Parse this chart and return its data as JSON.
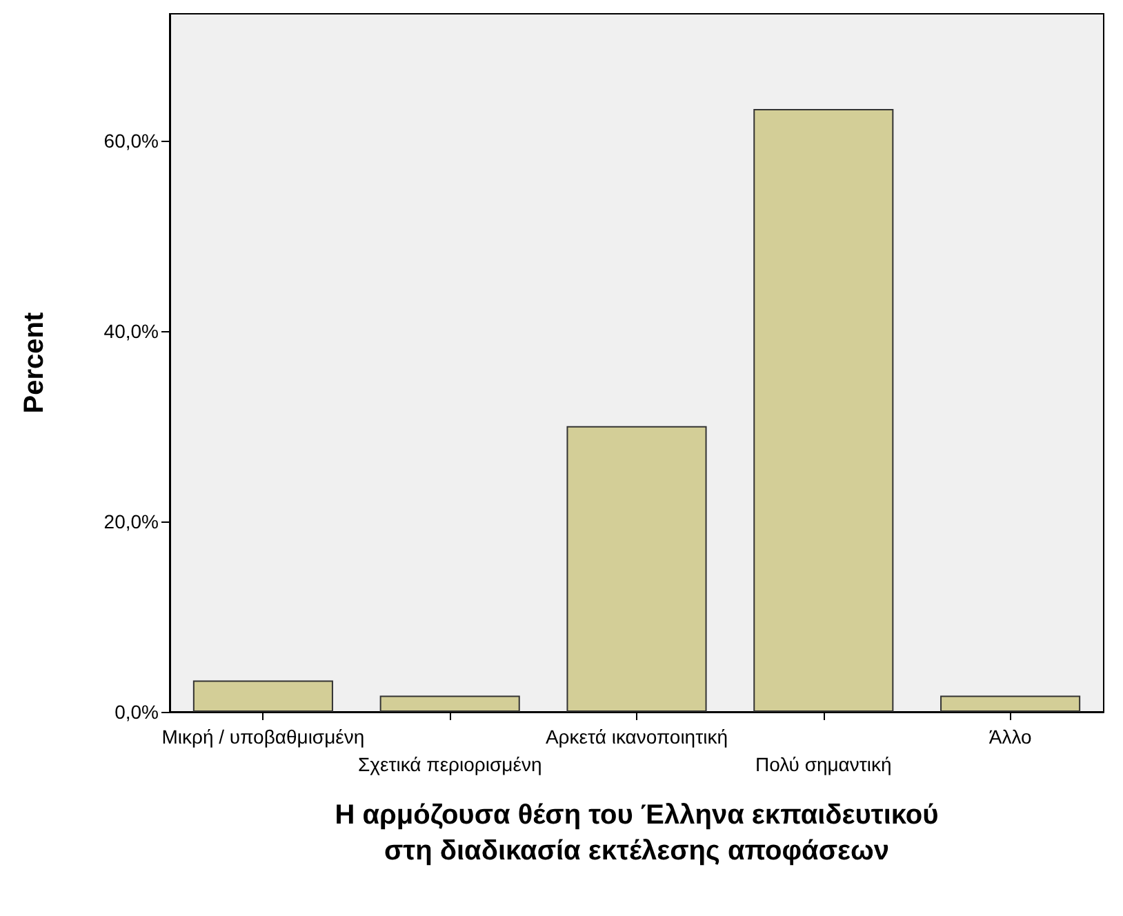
{
  "chart_data": {
    "type": "bar",
    "xlabel": "Η αρμόζουσα θέση του Έλληνα εκπαιδευτικού\nστη διαδικασία εκτέλεσης αποφάσεων",
    "ylabel": "Percent",
    "categories": [
      "Μικρή / υποβαθμισμένη",
      "Σχετικά περιορισμένη",
      "Αρκετά ικανοποιητική",
      "Πολύ σημαντική",
      "Άλλο"
    ],
    "values": [
      3.3,
      1.7,
      30.0,
      63.3,
      1.7
    ],
    "color": "#d3ce97",
    "ylim": [
      0,
      73.3
    ],
    "yticks": [
      {
        "value": 0,
        "label": "0,0%"
      },
      {
        "value": 20,
        "label": "20,0%"
      },
      {
        "value": 40,
        "label": "40,0%"
      },
      {
        "value": 60,
        "label": "60,0%"
      }
    ],
    "grid": false
  }
}
